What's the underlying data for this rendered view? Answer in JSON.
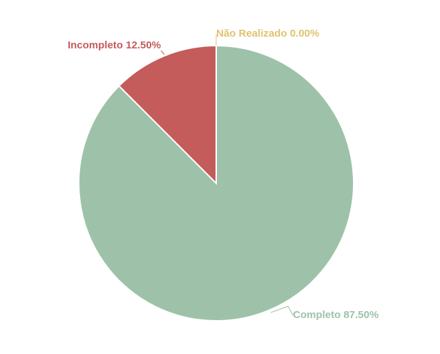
{
  "chart_data": {
    "type": "pie",
    "title": "",
    "slices": [
      {
        "label": "Completo",
        "value": 87.5,
        "display": "Completo 87.50%",
        "color": "#9dc2a9"
      },
      {
        "label": "Incompleto",
        "value": 12.5,
        "display": "Incompleto 12.50%",
        "color": "#c45c5b"
      },
      {
        "label": "Não Realizado",
        "value": 0.0,
        "display": "Não Realizado 0.00%",
        "color": "#e0c36e"
      }
    ]
  }
}
